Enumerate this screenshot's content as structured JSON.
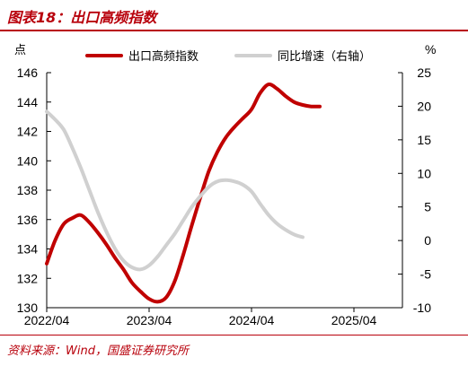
{
  "header": {
    "title": "图表18：出口高频指数"
  },
  "footer": {
    "source": "资料来源：Wind，国盛证券研究所"
  },
  "colors": {
    "accent": "#b8000b",
    "series_primary": "#c00000",
    "series_secondary": "#d0d0d0"
  },
  "chart_data": {
    "type": "line",
    "y_left": {
      "unit": "点",
      "range": [
        130,
        146
      ],
      "ticks": [
        "130",
        "132",
        "134",
        "136",
        "138",
        "140",
        "142",
        "144",
        "146"
      ]
    },
    "y_right": {
      "unit": "%",
      "range": [
        -10,
        25
      ],
      "ticks": [
        "-10",
        "-5",
        "0",
        "5",
        "10",
        "15",
        "20",
        "25"
      ]
    },
    "x_ticks": [
      "2022/04",
      "2023/04",
      "2024/04",
      "2025/04"
    ],
    "legend_position": "top",
    "grid": false,
    "series": [
      {
        "name": "出口高频指数",
        "axis": "left",
        "color": "#c00000",
        "points": [
          [
            "2022/04",
            133.0
          ],
          [
            "2022/05",
            134.6
          ],
          [
            "2022/06",
            135.7
          ],
          [
            "2022/07",
            136.1
          ],
          [
            "2022/08",
            136.3
          ],
          [
            "2022/09",
            135.8
          ],
          [
            "2022/10",
            135.1
          ],
          [
            "2022/11",
            134.3
          ],
          [
            "2022/12",
            133.4
          ],
          [
            "2023/01",
            132.6
          ],
          [
            "2023/02",
            131.7
          ],
          [
            "2023/03",
            131.1
          ],
          [
            "2023/04",
            130.6
          ],
          [
            "2023/05",
            130.4
          ],
          [
            "2023/06",
            130.7
          ],
          [
            "2023/07",
            131.8
          ],
          [
            "2023/08",
            133.6
          ],
          [
            "2023/09",
            135.6
          ],
          [
            "2023/10",
            137.5
          ],
          [
            "2023/11",
            139.3
          ],
          [
            "2023/12",
            140.6
          ],
          [
            "2024/01",
            141.6
          ],
          [
            "2024/02",
            142.3
          ],
          [
            "2024/03",
            142.9
          ],
          [
            "2024/04",
            143.5
          ],
          [
            "2024/05",
            144.6
          ],
          [
            "2024/06",
            145.2
          ],
          [
            "2024/07",
            144.9
          ],
          [
            "2024/08",
            144.4
          ],
          [
            "2024/09",
            144.0
          ],
          [
            "2024/10",
            143.8
          ],
          [
            "2024/11",
            143.7
          ],
          [
            "2024/12",
            143.7
          ]
        ]
      },
      {
        "name": "同比增速（右轴）",
        "axis": "right",
        "color": "#d0d0d0",
        "points": [
          [
            "2022/04",
            19.2
          ],
          [
            "2022/05",
            18.0
          ],
          [
            "2022/06",
            16.5
          ],
          [
            "2022/07",
            13.8
          ],
          [
            "2022/08",
            10.8
          ],
          [
            "2022/09",
            7.5
          ],
          [
            "2022/10",
            4.2
          ],
          [
            "2022/11",
            1.3
          ],
          [
            "2022/12",
            -1.2
          ],
          [
            "2023/01",
            -3.0
          ],
          [
            "2023/02",
            -4.0
          ],
          [
            "2023/03",
            -4.3
          ],
          [
            "2023/04",
            -3.7
          ],
          [
            "2023/05",
            -2.4
          ],
          [
            "2023/06",
            -0.7
          ],
          [
            "2023/07",
            1.0
          ],
          [
            "2023/08",
            3.0
          ],
          [
            "2023/09",
            5.0
          ],
          [
            "2023/10",
            6.6
          ],
          [
            "2023/11",
            8.0
          ],
          [
            "2023/12",
            8.8
          ],
          [
            "2024/01",
            9.0
          ],
          [
            "2024/02",
            8.8
          ],
          [
            "2024/03",
            8.3
          ],
          [
            "2024/04",
            7.3
          ],
          [
            "2024/05",
            5.5
          ],
          [
            "2024/06",
            3.8
          ],
          [
            "2024/07",
            2.5
          ],
          [
            "2024/08",
            1.6
          ],
          [
            "2024/09",
            0.9
          ],
          [
            "2024/10",
            0.5
          ]
        ]
      }
    ]
  }
}
